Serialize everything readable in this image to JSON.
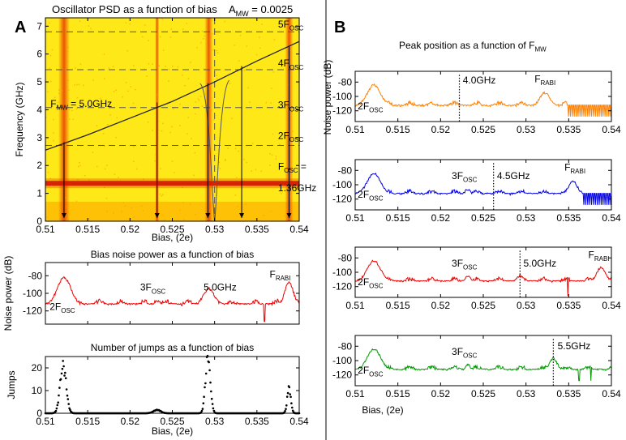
{
  "panel_labels": [
    "A",
    "B"
  ],
  "colors": {
    "psd_base": "#ffe817",
    "psd_hot": "#e83a00",
    "psd_band": "#c80000",
    "orange": "#ff8000",
    "blue": "#0000e6",
    "red": "#ee0000",
    "green": "#009900",
    "black": "#000000"
  },
  "chart_data": [
    {
      "id": "psd",
      "type": "heatmap",
      "title": "Oscillator PSD as a function of bias",
      "title_extra": {
        "base": "A",
        "sub": "MW",
        "rest": " = 0.0025"
      },
      "xlabel": "Bias, (2e)",
      "ylabel": "Frequency (GHz)",
      "xlim": [
        0.51,
        0.54
      ],
      "ylim": [
        0,
        7.3
      ],
      "xticks": [
        0.51,
        0.515,
        0.52,
        0.525,
        0.53,
        0.535,
        0.54
      ],
      "xtick_labels": [
        "0.51",
        "0.515",
        "0.52",
        "0.525",
        "0.53",
        "0.535",
        "0.54"
      ],
      "yticks": [
        0,
        1,
        2,
        3,
        4,
        5,
        6,
        7
      ],
      "ytick_labels": [
        "0",
        "1",
        "2",
        "3",
        "4",
        "5",
        "6",
        "7"
      ],
      "oscillator_frequency_GHz": 1.36,
      "mw_frequency_GHz": 5.0,
      "harmonic_lines_GHz": [
        2.72,
        4.08,
        5.44,
        6.8
      ],
      "vertical_line_bias": 0.53,
      "rabi_curve": [
        {
          "x": 0.51,
          "y": 2.55
        },
        {
          "x": 0.515,
          "y": 3.1
        },
        {
          "x": 0.52,
          "y": 3.7
        },
        {
          "x": 0.525,
          "y": 4.3
        },
        {
          "x": 0.53,
          "y": 5.0
        },
        {
          "x": 0.535,
          "y": 5.75
        },
        {
          "x": 0.54,
          "y": 6.45
        }
      ],
      "arrows_bias": [
        0.5122,
        0.5232,
        0.5292,
        0.5332,
        0.5388
      ],
      "annotations": [
        {
          "base": "5F",
          "sub": "OSC",
          "rest": "",
          "x": 0.5375,
          "y": 6.95
        },
        {
          "base": "4F",
          "sub": "OSC",
          "rest": "",
          "x": 0.5375,
          "y": 5.55
        },
        {
          "base": "3F",
          "sub": "OSC",
          "rest": "",
          "x": 0.5375,
          "y": 4.05
        },
        {
          "base": "2F",
          "sub": "OSC",
          "rest": "",
          "x": 0.5375,
          "y": 2.95
        },
        {
          "base": "F",
          "sub": "MW",
          "rest": " = 5.0GHz",
          "x": 0.5106,
          "y": 4.1
        },
        {
          "base": "F",
          "sub": "OSC",
          "rest": " =",
          "x": 0.5375,
          "y": 1.85
        },
        {
          "base": "",
          "sub": "",
          "rest": "1.36GHz",
          "x": 0.5375,
          "y": 1.08
        }
      ]
    },
    {
      "id": "bias_noise",
      "type": "line",
      "title": "Bias noise power as a function of bias",
      "ylabel": "Noise power (dB)",
      "xlim": [
        0.51,
        0.54
      ],
      "ylim": [
        -135,
        -65
      ],
      "xticks": [
        0.51,
        0.515,
        0.52,
        0.525,
        0.53,
        0.535,
        0.54
      ],
      "xtick_labels": [
        "",
        "",
        "",
        "",
        "",
        "",
        ""
      ],
      "yticks": [
        -80,
        -100,
        -120
      ],
      "ytick_labels": [
        "-80",
        "-100",
        "-120"
      ],
      "color": "#ee0000",
      "peaks": [
        {
          "x": 0.5122,
          "y": -82,
          "w": 0.0011
        },
        {
          "x": 0.5232,
          "y": -108,
          "w": 0.0004
        },
        {
          "x": 0.5293,
          "y": -95,
          "w": 0.0009
        },
        {
          "x": 0.5388,
          "y": -88,
          "w": 0.0007
        }
      ],
      "dips": [
        {
          "x": 0.5359,
          "y": -132
        }
      ],
      "annotations": [
        {
          "base": "2F",
          "sub": "OSC",
          "rest": "",
          "x": 0.5105,
          "y": -119
        },
        {
          "base": "3F",
          "sub": "OSC",
          "rest": "",
          "x": 0.5212,
          "y": -97
        },
        {
          "base": "",
          "sub": "",
          "rest": "5.0GHz",
          "x": 0.5287,
          "y": -97
        },
        {
          "base": "F",
          "sub": "RABI",
          "rest": "",
          "x": 0.5365,
          "y": -82
        }
      ]
    },
    {
      "id": "jumps",
      "type": "scatter",
      "title": "Number of jumps as a function of bias",
      "xlabel": "Bias, (2e)",
      "ylabel": "Jumps",
      "xlim": [
        0.51,
        0.54
      ],
      "ylim": [
        0,
        25
      ],
      "xticks": [
        0.51,
        0.515,
        0.52,
        0.525,
        0.53,
        0.535,
        0.54
      ],
      "xtick_labels": [
        "0.51",
        "0.515",
        "0.52",
        "0.525",
        "0.53",
        "0.535",
        "0.54"
      ],
      "yticks": [
        0,
        10,
        20
      ],
      "ytick_labels": [
        "0",
        "10",
        "20"
      ],
      "clusters": [
        {
          "x": 0.5121,
          "h": 21,
          "w": 0.0005
        },
        {
          "x": 0.5292,
          "h": 24,
          "w": 0.0004
        },
        {
          "x": 0.5388,
          "h": 11,
          "w": 0.0003
        },
        {
          "x": 0.5232,
          "h": 1.5,
          "w": 0.0006
        }
      ]
    },
    {
      "id": "peak_position",
      "type": "line",
      "title": {
        "base": "Peak position as a function of F",
        "sub": "MW",
        "rest": ""
      },
      "xlabel": "Bias, (2e)",
      "ylabel": "Noise power (dB)",
      "xlim": [
        0.51,
        0.54
      ],
      "ylim": [
        -135,
        -65
      ],
      "xticks": [
        0.51,
        0.515,
        0.52,
        0.525,
        0.53,
        0.535,
        0.54
      ],
      "xtick_labels": [
        "0.51",
        "0.515",
        "0.52",
        "0.525",
        "0.53",
        "0.535",
        "0.54"
      ],
      "yticks": [
        -80,
        -100,
        -120
      ],
      "ytick_labels": [
        "-80",
        "-100",
        "-120"
      ],
      "series": [
        {
          "name": "4.0GHz",
          "color": "#ff8000",
          "mw_bias": 0.5222,
          "rabi_bias": 0.5322,
          "peaks": [
            {
              "x": 0.5122,
              "y": -84,
              "w": 0.0011
            },
            {
              "x": 0.5322,
              "y": -95,
              "w": 0.0008
            }
          ],
          "spikes_from": 0.5348,
          "annotations": [
            {
              "base": "2F",
              "sub": "OSC",
              "rest": "",
              "x": 0.5103,
              "y": -118
            },
            {
              "base": "",
              "sub": "",
              "rest": "4.0GHz",
              "x": 0.5226,
              "y": -82,
              "colored": true
            },
            {
              "base": "F",
              "sub": "RABI",
              "rest": "",
              "x": 0.531,
              "y": -80
            }
          ]
        },
        {
          "name": "4.5GHz",
          "color": "#0000e6",
          "mw_bias": 0.5262,
          "rabi_bias": 0.5355,
          "peaks": [
            {
              "x": 0.5122,
              "y": -84,
              "w": 0.0011
            },
            {
              "x": 0.5232,
              "y": -106,
              "w": 0.0004
            },
            {
              "x": 0.5355,
              "y": -95,
              "w": 0.0007
            }
          ],
          "spikes_from": 0.5367,
          "annotations": [
            {
              "base": "2F",
              "sub": "OSC",
              "rest": "",
              "x": 0.5103,
              "y": -118
            },
            {
              "base": "3F",
              "sub": "OSC",
              "rest": "",
              "x": 0.5213,
              "y": -92
            },
            {
              "base": "",
              "sub": "",
              "rest": "4.5GHz",
              "x": 0.5266,
              "y": -92,
              "colored": true
            },
            {
              "base": "F",
              "sub": "RABI",
              "rest": "",
              "x": 0.5345,
              "y": -80
            }
          ]
        },
        {
          "name": "5.0GHz",
          "color": "#ee0000",
          "mw_bias": 0.5293,
          "rabi_bias": 0.5388,
          "peaks": [
            {
              "x": 0.5122,
              "y": -84,
              "w": 0.0011
            },
            {
              "x": 0.5232,
              "y": -106,
              "w": 0.0004
            },
            {
              "x": 0.5293,
              "y": -105,
              "w": 0.0005
            },
            {
              "x": 0.5388,
              "y": -93,
              "w": 0.0007
            }
          ],
          "dips": [
            {
              "x": 0.5349,
              "y": -133
            }
          ],
          "annotations": [
            {
              "base": "2F",
              "sub": "OSC",
              "rest": "",
              "x": 0.5103,
              "y": -118
            },
            {
              "base": "3F",
              "sub": "OSC",
              "rest": "",
              "x": 0.5213,
              "y": -92
            },
            {
              "base": "",
              "sub": "",
              "rest": "5.0GHz",
              "x": 0.5297,
              "y": -92,
              "colored": true
            },
            {
              "base": "F",
              "sub": "RABI",
              "rest": "",
              "x": 0.5373,
              "y": -80
            }
          ]
        },
        {
          "name": "5.5GHz",
          "color": "#009900",
          "mw_bias": 0.5332,
          "rabi_bias": 0,
          "peaks": [
            {
              "x": 0.5122,
              "y": -84,
              "w": 0.0011
            },
            {
              "x": 0.5232,
              "y": -106,
              "w": 0.0004
            },
            {
              "x": 0.5332,
              "y": -97,
              "w": 0.0006
            }
          ],
          "dips": [
            {
              "x": 0.5362,
              "y": -128
            },
            {
              "x": 0.5376,
              "y": -128
            }
          ],
          "annotations": [
            {
              "base": "2F",
              "sub": "OSC",
              "rest": "",
              "x": 0.5103,
              "y": -118
            },
            {
              "base": "3F",
              "sub": "OSC",
              "rest": "",
              "x": 0.5213,
              "y": -92
            },
            {
              "base": "",
              "sub": "",
              "rest": "5.5GHz",
              "x": 0.5337,
              "y": -84,
              "colored": true
            }
          ]
        }
      ]
    }
  ]
}
